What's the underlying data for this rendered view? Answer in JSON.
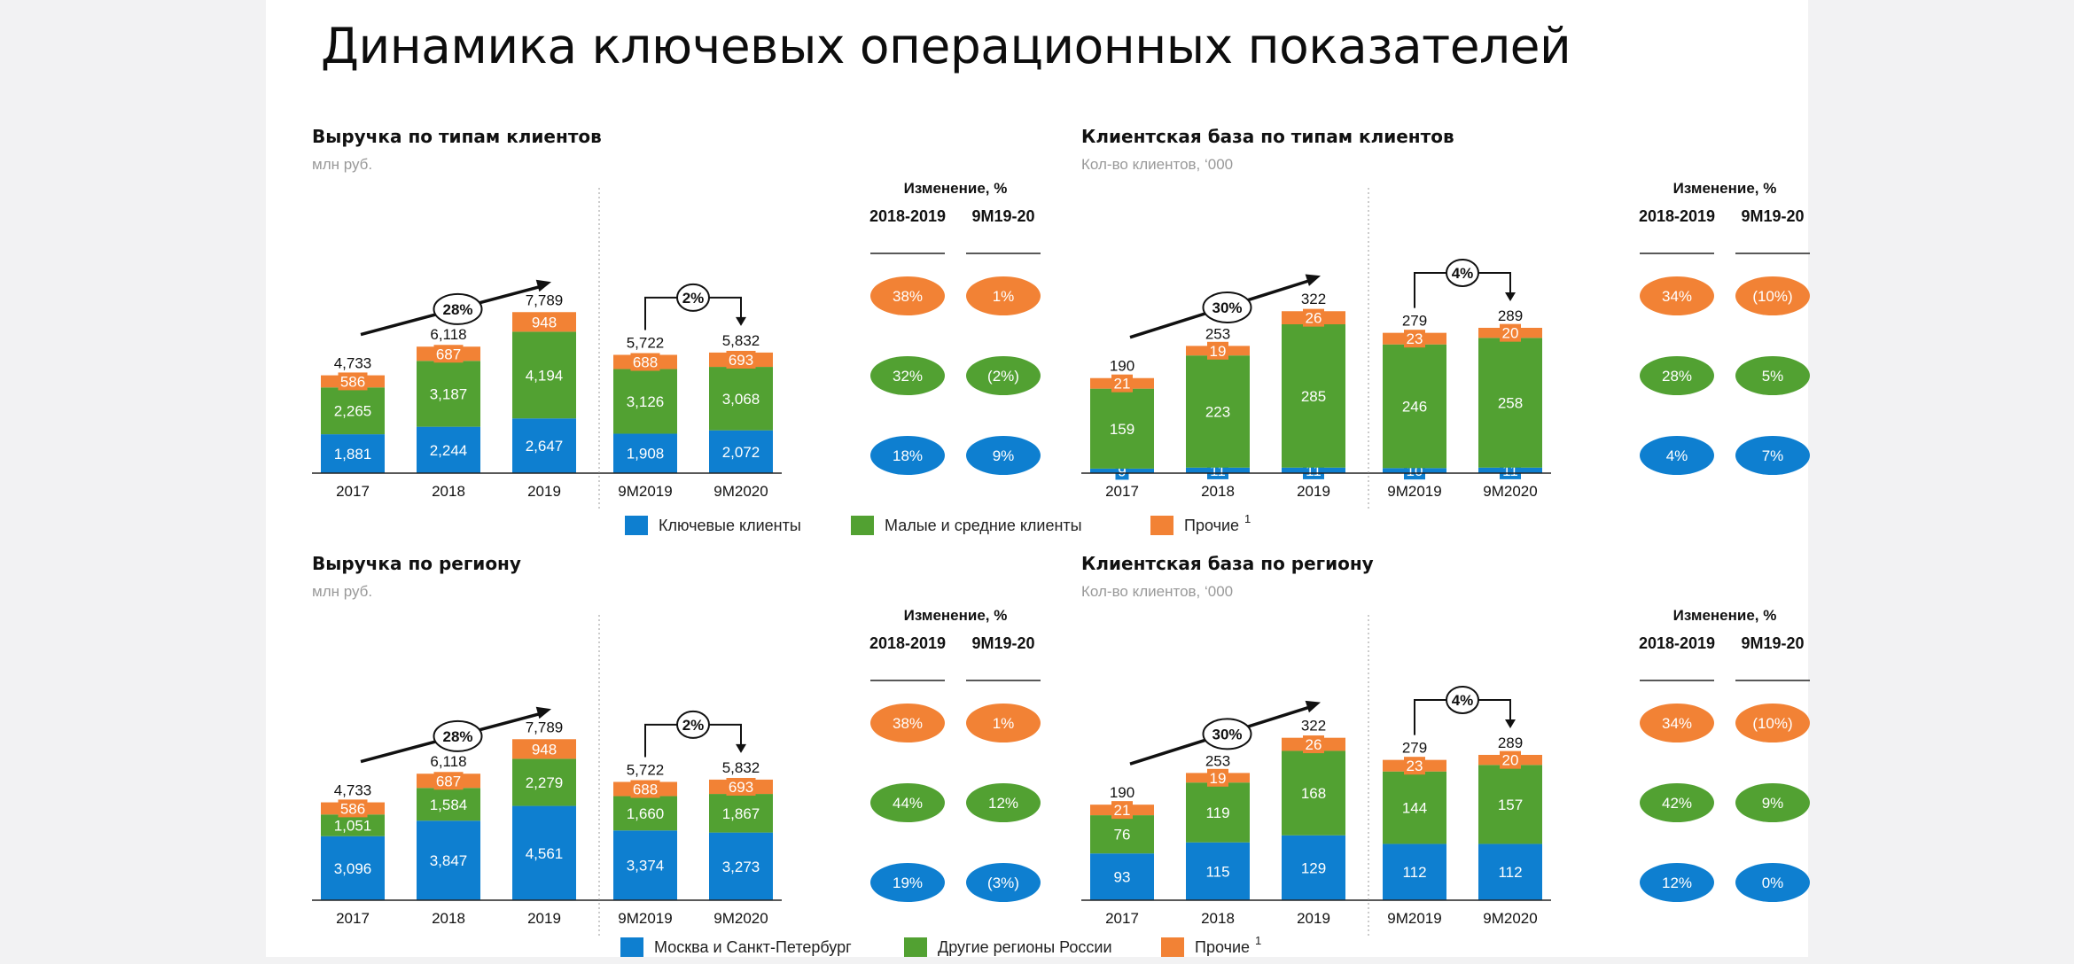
{
  "page_title": "Динамика ключевых операционных показателей",
  "colors": {
    "blue": "#0e7fd0",
    "green": "#52a132",
    "orange": "#f28235"
  },
  "legends": [
    {
      "items": [
        {
          "label": "Ключевые клиенты",
          "color": "#0e7fd0",
          "sup": ""
        },
        {
          "label": "Малые и средние клиенты",
          "color": "#52a132",
          "sup": ""
        },
        {
          "label": "Прочие",
          "color": "#f28235",
          "sup": "1"
        }
      ]
    },
    {
      "items": [
        {
          "label": "Москва и Санкт-Петербург",
          "color": "#0e7fd0",
          "sup": ""
        },
        {
          "label": "Другие регионы России",
          "color": "#52a132",
          "sup": ""
        },
        {
          "label": "Прочие",
          "color": "#f28235",
          "sup": "1"
        }
      ]
    }
  ],
  "chart_data": [
    {
      "type": "bar",
      "stacked": true,
      "title": "Выручка по типам клиентов",
      "subtitle": "млн руб.",
      "categories": [
        "2017",
        "2018",
        "2019",
        "9M2019",
        "9M2020"
      ],
      "series": [
        {
          "name": "Ключевые клиенты",
          "color": "#0e7fd0",
          "values": [
            1881,
            2244,
            2647,
            1908,
            2072
          ],
          "labels": [
            "1,881",
            "2,244",
            "2,647",
            "1,908",
            "2,072"
          ]
        },
        {
          "name": "Малые и средние клиенты",
          "color": "#52a132",
          "values": [
            2265,
            3187,
            4194,
            3126,
            3068
          ],
          "labels": [
            "2,265",
            "3,187",
            "4,194",
            "3,126",
            "3,068"
          ]
        },
        {
          "name": "Прочие",
          "color": "#f28235",
          "values": [
            586,
            687,
            948,
            688,
            693
          ],
          "labels": [
            "586",
            "687",
            "948",
            "688",
            "693"
          ]
        }
      ],
      "totals": [
        "4,733",
        "6,118",
        "7,789",
        "5,722",
        "5,832"
      ],
      "ylim": [
        0,
        9000
      ],
      "growth_annual": "28%",
      "growth_9m": "2%",
      "change_header": "Изменение, %",
      "change_columns": [
        "2018-2019",
        "9M19-20"
      ],
      "change_values": [
        [
          "38%",
          "1%"
        ],
        [
          "32%",
          "(2%)"
        ],
        [
          "18%",
          "9%"
        ]
      ]
    },
    {
      "type": "bar",
      "stacked": true,
      "title": "Клиентская база по типам клиентов",
      "subtitle": "Кол-во клиентов, ‘000",
      "categories": [
        "2017",
        "2018",
        "2019",
        "9M2019",
        "9M2020"
      ],
      "series": [
        {
          "name": "Ключевые клиенты",
          "color": "#0e7fd0",
          "values": [
            9,
            11,
            11,
            10,
            11
          ],
          "labels": [
            "9",
            "11",
            "11",
            "10",
            "11"
          ]
        },
        {
          "name": "Малые и средние клиенты",
          "color": "#52a132",
          "values": [
            159,
            223,
            285,
            246,
            258
          ],
          "labels": [
            "159",
            "223",
            "285",
            "246",
            "258"
          ]
        },
        {
          "name": "Прочие",
          "color": "#f28235",
          "values": [
            21,
            19,
            26,
            23,
            20
          ],
          "labels": [
            "21",
            "19",
            "26",
            "23",
            "20"
          ]
        }
      ],
      "totals": [
        "190",
        "253",
        "322",
        "279",
        "289"
      ],
      "ylim": [
        0,
        370
      ],
      "growth_annual": "30%",
      "growth_9m": "4%",
      "change_header": "Изменение, %",
      "change_columns": [
        "2018-2019",
        "9M19-20"
      ],
      "change_values": [
        [
          "34%",
          "(10%)"
        ],
        [
          "28%",
          "5%"
        ],
        [
          "4%",
          "7%"
        ]
      ]
    },
    {
      "type": "bar",
      "stacked": true,
      "title": "Выручка по региону",
      "subtitle": "млн руб.",
      "categories": [
        "2017",
        "2018",
        "2019",
        "9M2019",
        "9M2020"
      ],
      "series": [
        {
          "name": "Москва и Санкт-Петербург",
          "color": "#0e7fd0",
          "values": [
            3096,
            3847,
            4561,
            3374,
            3273
          ],
          "labels": [
            "3,096",
            "3,847",
            "4,561",
            "3,374",
            "3,273"
          ]
        },
        {
          "name": "Другие регионы России",
          "color": "#52a132",
          "values": [
            1051,
            1584,
            2279,
            1660,
            1867
          ],
          "labels": [
            "1,051",
            "1,584",
            "2,279",
            "1,660",
            "1,867"
          ]
        },
        {
          "name": "Прочие",
          "color": "#f28235",
          "values": [
            586,
            687,
            948,
            688,
            693
          ],
          "labels": [
            "586",
            "687",
            "948",
            "688",
            "693"
          ]
        }
      ],
      "totals": [
        "4,733",
        "6,118",
        "7,789",
        "5,722",
        "5,832"
      ],
      "ylim": [
        0,
        9000
      ],
      "growth_annual": "28%",
      "growth_9m": "2%",
      "change_header": "Изменение, %",
      "change_columns": [
        "2018-2019",
        "9M19-20"
      ],
      "change_values": [
        [
          "38%",
          "1%"
        ],
        [
          "44%",
          "12%"
        ],
        [
          "19%",
          "(3%)"
        ]
      ]
    },
    {
      "type": "bar",
      "stacked": true,
      "title": "Клиентская база по региону",
      "subtitle": "Кол-во клиентов, ‘000",
      "categories": [
        "2017",
        "2018",
        "2019",
        "9M2019",
        "9M2020"
      ],
      "series": [
        {
          "name": "Москва и Санкт-Петербург",
          "color": "#0e7fd0",
          "values": [
            93,
            115,
            129,
            112,
            112
          ],
          "labels": [
            "93",
            "115",
            "129",
            "112",
            "112"
          ]
        },
        {
          "name": "Другие регионы России",
          "color": "#52a132",
          "values": [
            76,
            119,
            168,
            144,
            157
          ],
          "labels": [
            "76",
            "119",
            "168",
            "144",
            "157"
          ]
        },
        {
          "name": "Прочие",
          "color": "#f28235",
          "values": [
            21,
            19,
            26,
            23,
            20
          ],
          "labels": [
            "21",
            "19",
            "26",
            "23",
            "20"
          ]
        }
      ],
      "totals": [
        "190",
        "253",
        "322",
        "279",
        "289"
      ],
      "ylim": [
        0,
        370
      ],
      "growth_annual": "30%",
      "growth_9m": "4%",
      "change_header": "Изменение, %",
      "change_columns": [
        "2018-2019",
        "9M19-20"
      ],
      "change_values": [
        [
          "34%",
          "(10%)"
        ],
        [
          "42%",
          "9%"
        ],
        [
          "12%",
          "0%"
        ]
      ]
    }
  ]
}
